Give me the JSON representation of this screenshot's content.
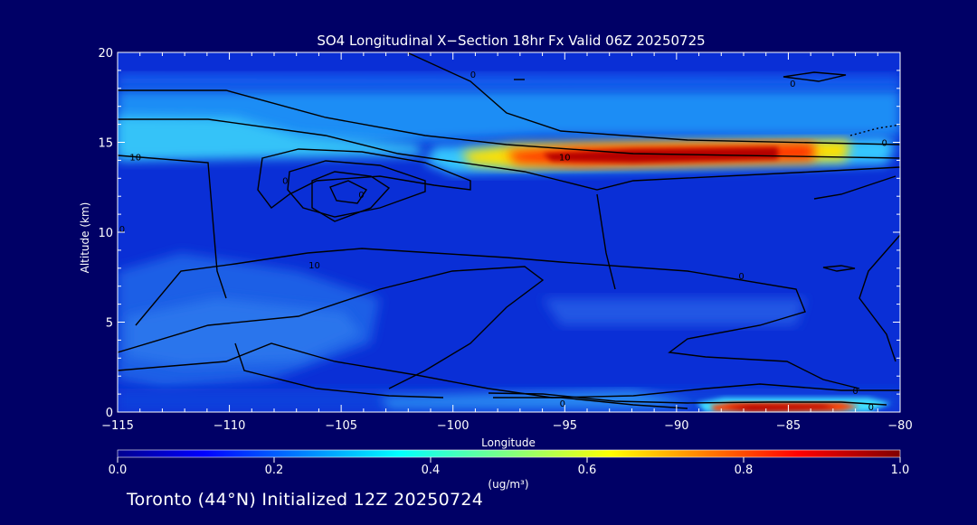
{
  "chart_data": {
    "type": "heatmap",
    "title": "SO4 Longitudinal X−Section 18hr  Fx Valid 06Z 20250725",
    "xlabel": "Longitude",
    "ylabel": "Altitude (km)",
    "xlim": [
      -115,
      -80
    ],
    "ylim": [
      0,
      20
    ],
    "x_ticks": [
      -115,
      -110,
      -105,
      -100,
      -95,
      -90,
      -85,
      -80
    ],
    "x_tick_labels": [
      "−115",
      "−110",
      "−105",
      "−100",
      "−95",
      "−90",
      "−85",
      "−80"
    ],
    "y_ticks": [
      0,
      5,
      10,
      15,
      20
    ],
    "y_tick_labels": [
      "0",
      "5",
      "10",
      "15",
      "20"
    ],
    "colorbar": {
      "min": 0.0,
      "max": 1.0,
      "ticks": [
        0.0,
        0.2,
        0.4,
        0.6,
        0.8,
        1.0
      ],
      "tick_labels": [
        "0.0",
        "0.2",
        "0.4",
        "0.6",
        "0.8",
        "1.0"
      ],
      "label": "(ug/m³)",
      "colormap": "jet"
    },
    "concentration_features": [
      {
        "lon_range": [
          -99,
          -81.5
        ],
        "alt_range": [
          13.3,
          15.2
        ],
        "peak_value": 0.95
      },
      {
        "lon_range": [
          -88.5,
          -82
        ],
        "alt_range": [
          0.1,
          0.6
        ],
        "peak_value": 1.0
      },
      {
        "lon_range": [
          -115,
          -104
        ],
        "alt_range": [
          13.5,
          16.0
        ],
        "peak_value": 0.35
      },
      {
        "lon_range": [
          -115,
          -101
        ],
        "alt_range": [
          1.5,
          6.0
        ],
        "peak_value": 0.2
      }
    ],
    "contour_labels": [
      {
        "text": "10",
        "lon": -114.2,
        "alt": 14.2
      },
      {
        "text": "0",
        "lon": -99.1,
        "alt": 18.8
      },
      {
        "text": "0",
        "lon": -107.5,
        "alt": 12.9
      },
      {
        "text": "0",
        "lon": -104.1,
        "alt": 12.1
      },
      {
        "text": "10",
        "lon": -95.0,
        "alt": 14.2
      },
      {
        "text": "0",
        "lon": -80.7,
        "alt": 15.0
      },
      {
        "text": "0",
        "lon": -84.8,
        "alt": 18.3
      },
      {
        "text": "10",
        "lon": -106.2,
        "alt": 8.2
      },
      {
        "text": "0",
        "lon": -87.1,
        "alt": 7.6
      },
      {
        "text": "0",
        "lon": -114.8,
        "alt": 10.2
      },
      {
        "text": "0",
        "lon": -95.1,
        "alt": 0.5
      },
      {
        "text": "0",
        "lon": -82.0,
        "alt": 1.2
      },
      {
        "text": "0",
        "lon": -81.3,
        "alt": 0.3
      }
    ]
  },
  "footer": "Toronto (44°N) Initialized 12Z 20250724",
  "colors": {
    "background": "#000066",
    "text": "#ffffff",
    "contour": "#000000"
  }
}
